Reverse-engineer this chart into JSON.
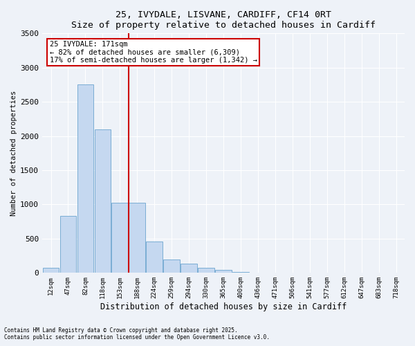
{
  "title_line1": "25, IVYDALE, LISVANE, CARDIFF, CF14 0RT",
  "title_line2": "Size of property relative to detached houses in Cardiff",
  "xlabel": "Distribution of detached houses by size in Cardiff",
  "ylabel": "Number of detached properties",
  "bar_color": "#c5d8f0",
  "bar_edge_color": "#7aadd4",
  "background_color": "#eef2f8",
  "grid_color": "#ffffff",
  "categories": [
    "12sqm",
    "47sqm",
    "82sqm",
    "118sqm",
    "153sqm",
    "188sqm",
    "224sqm",
    "259sqm",
    "294sqm",
    "330sqm",
    "365sqm",
    "400sqm",
    "436sqm",
    "471sqm",
    "506sqm",
    "541sqm",
    "577sqm",
    "612sqm",
    "647sqm",
    "683sqm",
    "718sqm"
  ],
  "values": [
    70,
    830,
    2750,
    2100,
    1020,
    1020,
    460,
    200,
    130,
    70,
    40,
    10,
    5,
    2,
    1,
    0,
    0,
    0,
    0,
    0,
    0
  ],
  "vline_position": 5.0,
  "annotation_text": "25 IVYDALE: 171sqm\n← 82% of detached houses are smaller (6,309)\n17% of semi-detached houses are larger (1,342) →",
  "annotation_box_color": "#ffffff",
  "annotation_box_edge_color": "#cc0000",
  "vline_color": "#cc0000",
  "footnote1": "Contains HM Land Registry data © Crown copyright and database right 2025.",
  "footnote2": "Contains public sector information licensed under the Open Government Licence v3.0.",
  "ylim": [
    0,
    3500
  ],
  "yticks": [
    0,
    500,
    1000,
    1500,
    2000,
    2500,
    3000,
    3500
  ]
}
